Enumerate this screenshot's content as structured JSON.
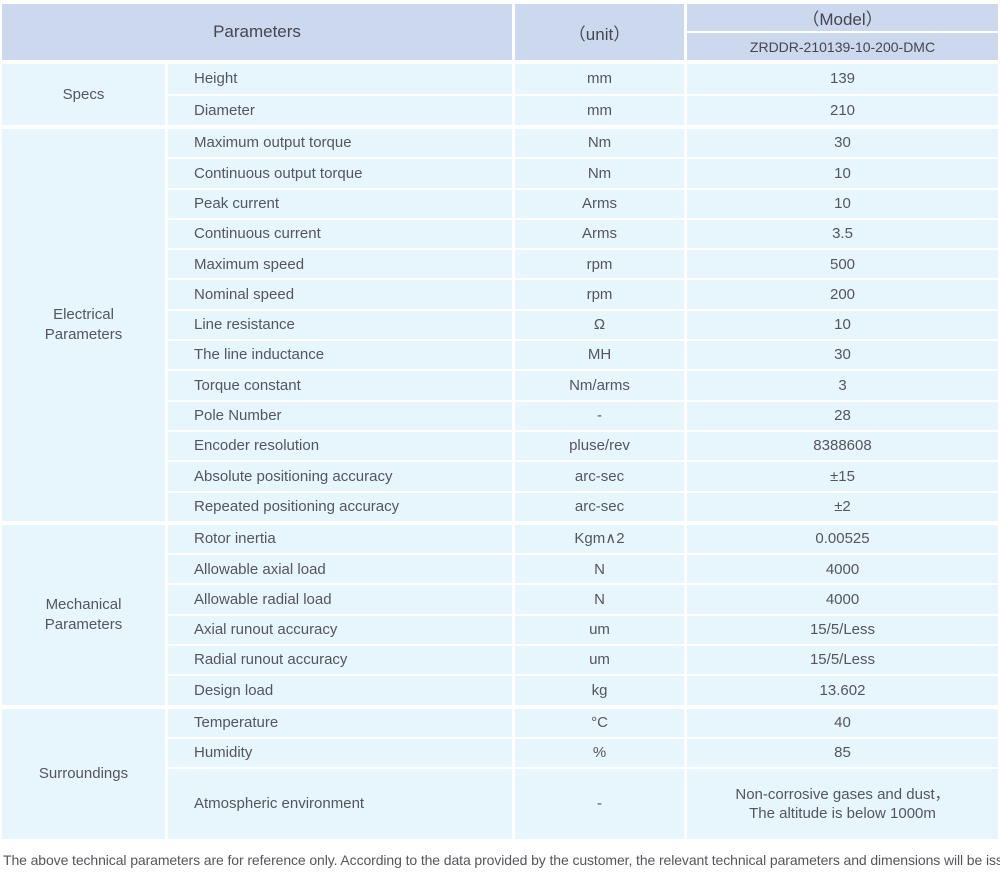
{
  "colors": {
    "header_bg": "#ccd8ed",
    "row_bg": "#e7f5fd",
    "text_color": "#55565c",
    "header_text_color": "#45464f"
  },
  "header": {
    "parameters_label": "Parameters",
    "unit_label": "（unit）",
    "model_label": "（Model）",
    "model_value": "ZRDDR-210139-10-200-DMC"
  },
  "sections": [
    {
      "category": "Specs",
      "rows": [
        {
          "name": "Height",
          "unit": "mm",
          "value": "139"
        },
        {
          "name": "Diameter",
          "unit": "mm",
          "value": "210"
        }
      ]
    },
    {
      "category": "Electrical\nParameters",
      "rows": [
        {
          "name": "Maximum output torque",
          "unit": "Nm",
          "value": "30"
        },
        {
          "name": "Continuous output torque",
          "unit": "Nm",
          "value": "10"
        },
        {
          "name": "Peak current",
          "unit": "Arms",
          "value": "10"
        },
        {
          "name": "Continuous current",
          "unit": "Arms",
          "value": "3.5"
        },
        {
          "name": "Maximum speed",
          "unit": "rpm",
          "value": "500"
        },
        {
          "name": "Nominal speed",
          "unit": "rpm",
          "value": "200"
        },
        {
          "name": "Line resistance",
          "unit": "Ω",
          "value": "10"
        },
        {
          "name": "The line inductance",
          "unit": "MH",
          "value": "30"
        },
        {
          "name": "Torque constant",
          "unit": "Nm/arms",
          "value": "3"
        },
        {
          "name": "Pole Number",
          "unit": "-",
          "value": "28"
        },
        {
          "name": "Encoder resolution",
          "unit": "pluse/rev",
          "value": "8388608"
        },
        {
          "name": "Absolute positioning accuracy",
          "unit": "arc-sec",
          "value": "±15"
        },
        {
          "name": "Repeated positioning accuracy",
          "unit": "arc-sec",
          "value": "±2"
        }
      ]
    },
    {
      "category": "Mechanical\nParameters",
      "rows": [
        {
          "name": "Rotor inertia",
          "unit": "Kgm∧2",
          "value": "0.00525"
        },
        {
          "name": "Allowable axial load",
          "unit": "N",
          "value": "4000"
        },
        {
          "name": "Allowable radial load",
          "unit": "N",
          "value": "4000"
        },
        {
          "name": "Axial runout accuracy",
          "unit": "um",
          "value": "15/5/Less"
        },
        {
          "name": "Radial runout accuracy",
          "unit": "um",
          "value": "15/5/Less"
        },
        {
          "name": "Design load",
          "unit": "kg",
          "value": "13.602"
        }
      ]
    },
    {
      "category": "Surroundings",
      "rows": [
        {
          "name": "Temperature",
          "unit": "°C",
          "value": "40"
        },
        {
          "name": "Humidity",
          "unit": "%",
          "value": "85"
        },
        {
          "name": "Atmospheric environment",
          "unit": "-",
          "value": "Non-corrosive gases and dust，\nThe altitude is below 1000m"
        }
      ]
    }
  ],
  "footer_note": "The above technical parameters are for reference only. According to the data provided by the customer, the relevant technical parameters and dimensions will be issued."
}
